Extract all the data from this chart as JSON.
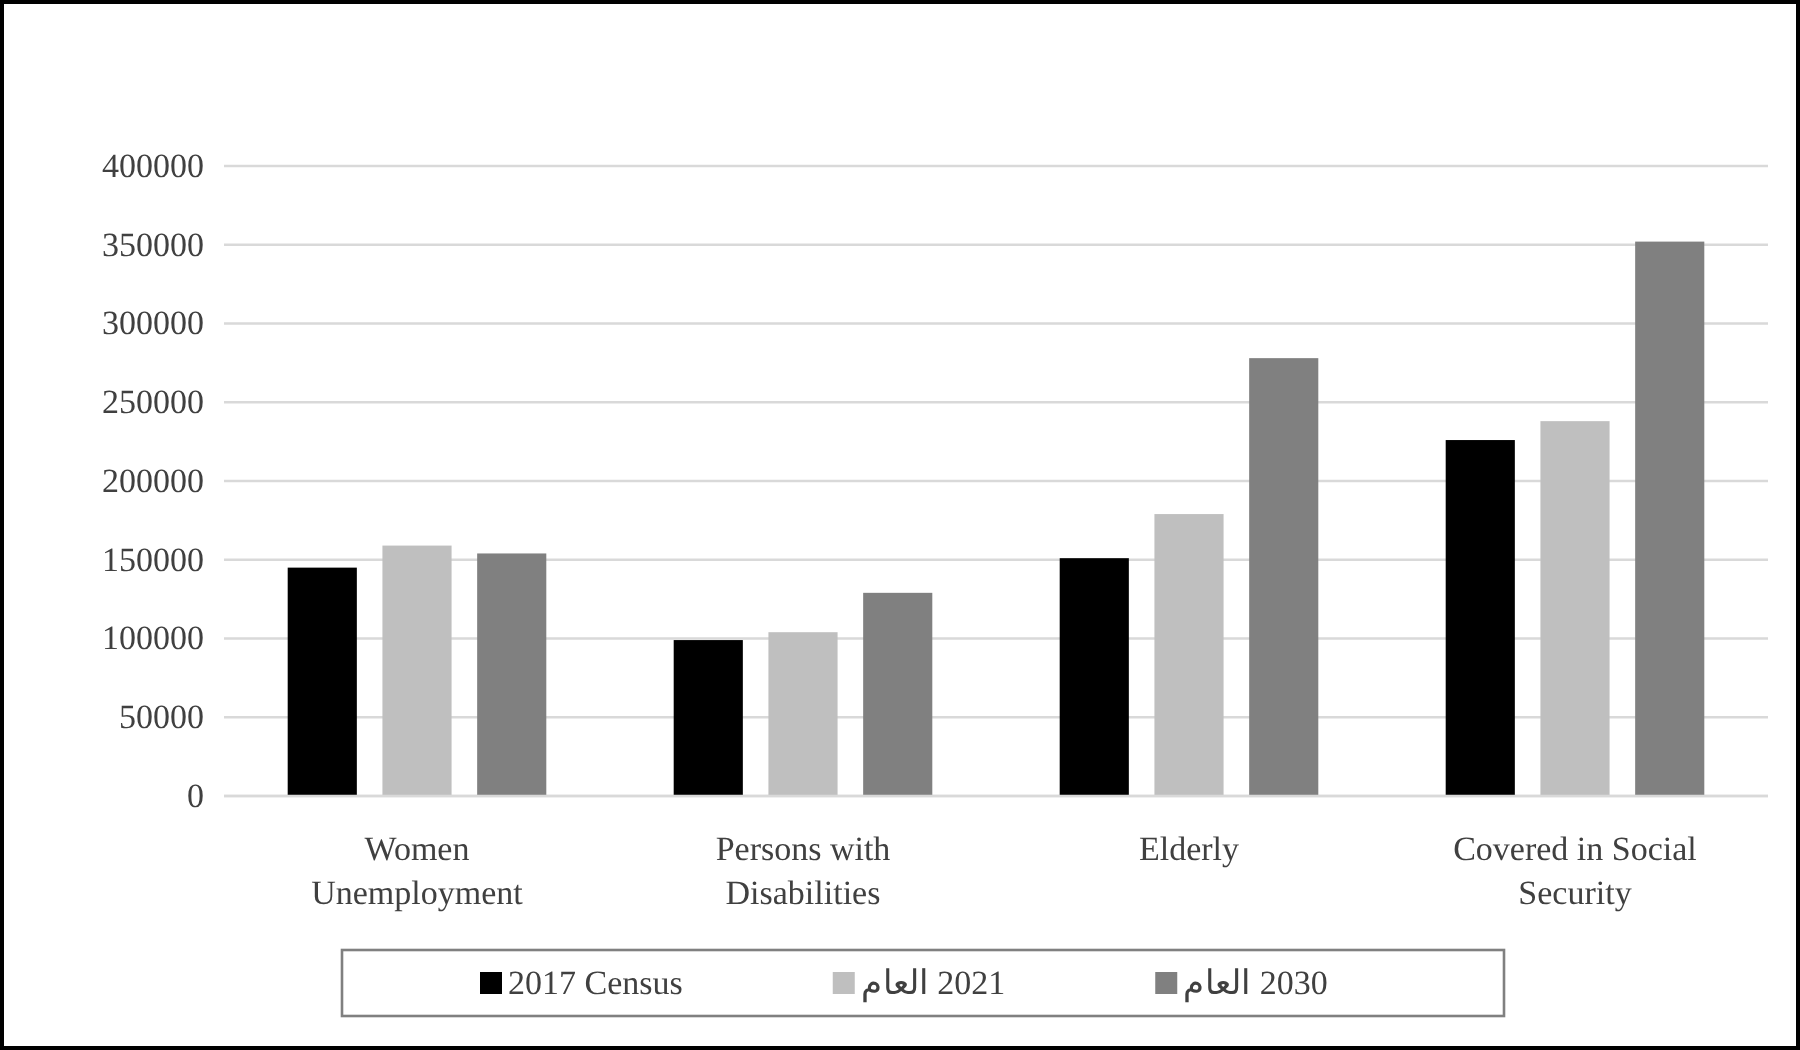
{
  "chart_data": {
    "type": "bar",
    "categories": [
      "Women Unemployment",
      "Persons with Disabilities",
      "Elderly",
      "Covered in Social Security"
    ],
    "series": [
      {
        "name": "2017 Census",
        "color": "#000000",
        "values": [
          145000,
          99000,
          151000,
          226000
        ]
      },
      {
        "name": "2021 العام",
        "color": "#bfbfbf",
        "values": [
          159000,
          104000,
          179000,
          238000
        ]
      },
      {
        "name": "2030 العام",
        "color": "#808080",
        "values": [
          154000,
          129000,
          278000,
          352000
        ]
      }
    ],
    "ylim": [
      0,
      400000
    ],
    "yticks": [
      0,
      50000,
      100000,
      150000,
      200000,
      250000,
      300000,
      350000,
      400000
    ],
    "grid": "y",
    "legend": "bottom"
  }
}
